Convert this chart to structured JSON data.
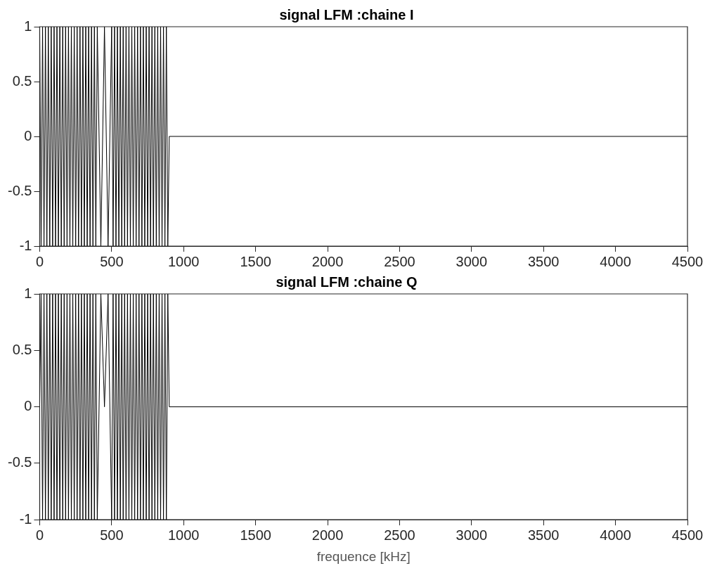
{
  "chart_data": [
    {
      "type": "line",
      "title": "signal LFM :chaine I",
      "x": [
        0,
        10,
        20,
        30,
        40,
        50,
        60,
        70,
        80,
        90,
        100,
        110,
        120,
        130,
        140,
        150,
        160,
        170,
        180,
        190,
        200,
        210,
        220,
        230,
        240,
        250,
        260,
        270,
        280,
        290,
        300,
        310,
        320,
        330,
        340,
        350,
        360,
        370,
        380,
        390,
        400,
        425,
        450,
        475,
        500,
        510,
        520,
        530,
        540,
        550,
        560,
        570,
        580,
        590,
        600,
        610,
        620,
        630,
        640,
        650,
        660,
        670,
        680,
        690,
        700,
        710,
        720,
        730,
        740,
        750,
        760,
        770,
        780,
        790,
        800,
        810,
        820,
        830,
        840,
        850,
        860,
        870,
        880,
        890,
        900,
        4500
      ],
      "series": [
        {
          "color": "#000000",
          "values": [
            1,
            -1,
            1,
            -1,
            1,
            -1,
            1,
            -1,
            1,
            -1,
            1,
            -1,
            1,
            -1,
            1,
            -1,
            1,
            -1,
            1,
            -1,
            1,
            -1,
            1,
            -1,
            1,
            -1,
            1,
            -1,
            1,
            -1,
            1,
            -1,
            1,
            -1,
            1,
            -1,
            1,
            -1,
            1,
            -1,
            1,
            -1,
            1,
            -1,
            1,
            -1,
            1,
            -1,
            1,
            -1,
            1,
            -1,
            1,
            -1,
            1,
            -1,
            1,
            -1,
            1,
            -1,
            1,
            -1,
            1,
            -1,
            1,
            -1,
            1,
            -1,
            1,
            -1,
            1,
            -1,
            1,
            -1,
            1,
            -1,
            1,
            -1,
            1,
            -1,
            1,
            -1,
            1,
            -1,
            0,
            0
          ]
        }
      ],
      "xlim": [
        0,
        4500
      ],
      "xticks": [
        0,
        500,
        1000,
        1500,
        2000,
        2500,
        3000,
        3500,
        4000,
        4500
      ],
      "ylim": [
        -1,
        1
      ],
      "yticks": [
        -1,
        -0.5,
        0,
        0.5,
        1
      ],
      "line_style": "solid"
    },
    {
      "type": "line",
      "title": "signal LFM :chaine Q",
      "xlabel": "frequence [kHz]",
      "x": [
        0,
        10,
        20,
        30,
        40,
        50,
        60,
        70,
        80,
        90,
        100,
        110,
        120,
        130,
        140,
        150,
        160,
        170,
        180,
        190,
        200,
        210,
        220,
        230,
        240,
        250,
        260,
        270,
        280,
        290,
        300,
        310,
        320,
        330,
        340,
        350,
        360,
        370,
        380,
        390,
        400,
        425,
        450,
        475,
        500,
        510,
        520,
        530,
        540,
        550,
        560,
        570,
        580,
        590,
        600,
        610,
        620,
        630,
        640,
        650,
        660,
        670,
        680,
        690,
        700,
        710,
        720,
        730,
        740,
        750,
        760,
        770,
        780,
        790,
        800,
        810,
        820,
        830,
        840,
        850,
        860,
        870,
        880,
        890,
        900,
        4500
      ],
      "series": [
        {
          "color": "#000000",
          "values": [
            0,
            1,
            -1,
            1,
            -1,
            1,
            -1,
            1,
            -1,
            1,
            -1,
            1,
            -1,
            1,
            -1,
            1,
            -1,
            1,
            -1,
            1,
            -1,
            1,
            -1,
            1,
            -1,
            1,
            -1,
            1,
            -1,
            1,
            -1,
            1,
            -1,
            1,
            -1,
            1,
            -1,
            1,
            -1,
            1,
            -1,
            1,
            0,
            1,
            -1,
            1,
            -1,
            1,
            -1,
            1,
            -1,
            1,
            -1,
            1,
            -1,
            1,
            -1,
            1,
            -1,
            1,
            -1,
            1,
            -1,
            1,
            -1,
            1,
            -1,
            1,
            -1,
            1,
            -1,
            1,
            -1,
            1,
            -1,
            1,
            -1,
            1,
            -1,
            1,
            -1,
            1,
            -1,
            1,
            0,
            0
          ]
        }
      ],
      "xlim": [
        0,
        4500
      ],
      "xticks": [
        0,
        500,
        1000,
        1500,
        2000,
        2500,
        3000,
        3500,
        4000,
        4500
      ],
      "ylim": [
        -1,
        1
      ],
      "yticks": [
        -1,
        -0.5,
        0,
        0.5,
        1
      ],
      "line_style": "solid"
    }
  ]
}
